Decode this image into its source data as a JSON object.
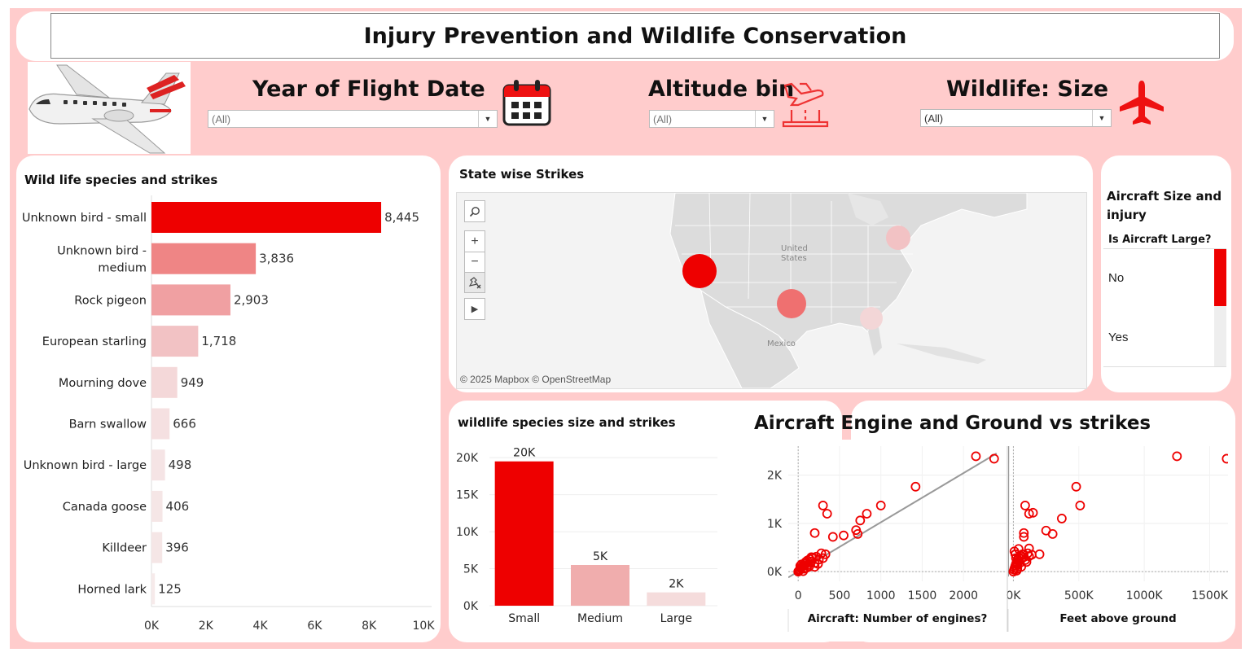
{
  "dashboard": {
    "title": "Injury Prevention and Wildlife Conservation",
    "image_icon": "airplane-illustration-icon"
  },
  "filters": [
    {
      "title": "Year of Flight Date",
      "value": "(All)",
      "icon": "calendar-icon"
    },
    {
      "title": "Altitude bin",
      "value": "(All)",
      "icon": "plane-landing-icon"
    },
    {
      "title": "Wildlife: Size",
      "value": "(All)",
      "icon": "airplane-icon"
    }
  ],
  "species": {
    "title": "Wild life species and strikes",
    "chart_data": {
      "type": "bar",
      "orientation": "horizontal",
      "categories": [
        "Unknown bird - small",
        "Unknown bird - medium",
        "Rock pigeon",
        "European starling",
        "Mourning dove",
        "Barn swallow",
        "Unknown bird - large",
        "Canada goose",
        "Killdeer",
        "Horned lark"
      ],
      "category_lines": [
        [
          "Unknown bird - small"
        ],
        [
          "Unknown bird -",
          "medium"
        ],
        [
          "Rock pigeon"
        ],
        [
          "European starling"
        ],
        [
          "Mourning dove"
        ],
        [
          "Barn swallow"
        ],
        [
          "Unknown bird - large"
        ],
        [
          "Canada goose"
        ],
        [
          "Killdeer"
        ],
        [
          "Horned lark"
        ]
      ],
      "values": [
        8445,
        3836,
        2903,
        1718,
        949,
        666,
        498,
        406,
        396,
        125
      ],
      "value_labels": [
        "8,445",
        "3,836",
        "2,903",
        "1,718",
        "949",
        "666",
        "498",
        "406",
        "396",
        "125"
      ],
      "xlim": [
        0,
        10000
      ],
      "xticks": [
        0,
        2000,
        4000,
        6000,
        8000,
        10000
      ],
      "xtick_labels": [
        "0K",
        "2K",
        "4K",
        "6K",
        "8K",
        "10K"
      ],
      "colors": [
        "#ee0000",
        "#ef8585",
        "#f0a0a2",
        "#f2c2c4",
        "#f4d8d9",
        "#f5e0e1",
        "#f5e4e5",
        "#f5e6e6",
        "#f5e6e6",
        "#f6eaea"
      ]
    }
  },
  "map": {
    "title": "State wise Strikes",
    "labels": {
      "us": "United\nStates",
      "mexico": "Mexico"
    },
    "attribution": "© 2025 Mapbox © OpenStreetMap",
    "tools": [
      "search-icon",
      "zoom-in-icon",
      "zoom-out-icon",
      "pin-clear-icon",
      "play-icon"
    ]
  },
  "aircraft_size": {
    "title": "Aircraft Size and injury",
    "subheader": "Is Aircraft Large?",
    "rows": [
      {
        "label": "No",
        "fill": 0.97
      },
      {
        "label": "Yes",
        "fill": 0.03
      }
    ]
  },
  "size_strikes": {
    "title": "wildlife species size and strikes",
    "chart_data": {
      "type": "bar",
      "categories": [
        "Small",
        "Medium",
        "Large"
      ],
      "values": [
        19500,
        5500,
        1800
      ],
      "value_labels": [
        "20K",
        "5K",
        "2K"
      ],
      "ylim": [
        0,
        22000
      ],
      "yticks": [
        0,
        5000,
        10000,
        15000,
        20000
      ],
      "ytick_labels": [
        "0K",
        "5K",
        "10K",
        "15K",
        "20K"
      ],
      "colors": [
        "#ee0000",
        "#f0adad",
        "#f5dcdc"
      ]
    }
  },
  "engine_ground": {
    "title": "Aircraft Engine and Ground vs strikes",
    "chart_data": [
      {
        "type": "scatter",
        "xlabel": "Aircraft: Number of engines?",
        "xlim": [
          -120,
          2520
        ],
        "xticks": [
          0,
          500,
          1000,
          1500,
          2000
        ],
        "xtick_labels": [
          "0",
          "500",
          "1000",
          "1500",
          "2000"
        ],
        "ylim": [
          -200,
          2600
        ],
        "yticks": [
          0,
          1000,
          2000
        ],
        "ytick_labels": [
          "0K",
          "1K",
          "2K"
        ],
        "trend": [
          [
            -120,
            -120
          ],
          [
            2400,
            2450
          ]
        ],
        "points": [
          [
            0,
            0
          ],
          [
            10,
            20
          ],
          [
            20,
            40
          ],
          [
            30,
            70
          ],
          [
            40,
            90
          ],
          [
            50,
            110
          ],
          [
            60,
            130
          ],
          [
            80,
            160
          ],
          [
            90,
            200
          ],
          [
            100,
            170
          ],
          [
            110,
            230
          ],
          [
            120,
            140
          ],
          [
            140,
            260
          ],
          [
            160,
            210
          ],
          [
            180,
            290
          ],
          [
            200,
            180
          ],
          [
            220,
            310
          ],
          [
            250,
            250
          ],
          [
            280,
            380
          ],
          [
            300,
            280
          ],
          [
            330,
            360
          ],
          [
            160,
            300
          ],
          [
            130,
            100
          ],
          [
            70,
            60
          ],
          [
            40,
            150
          ],
          [
            200,
            100
          ],
          [
            240,
            160
          ],
          [
            100,
            80
          ],
          [
            300,
            1370
          ],
          [
            350,
            1200
          ],
          [
            200,
            800
          ],
          [
            420,
            720
          ],
          [
            550,
            750
          ],
          [
            700,
            860
          ],
          [
            720,
            780
          ],
          [
            750,
            1060
          ],
          [
            830,
            1200
          ],
          [
            1000,
            1370
          ],
          [
            1420,
            1760
          ],
          [
            2150,
            2390
          ],
          [
            2370,
            2340
          ],
          [
            60,
            10
          ],
          [
            25,
            120
          ]
        ]
      },
      {
        "type": "scatter",
        "xlabel": "Feet above ground",
        "xlim": [
          -40000,
          1640000
        ],
        "xticks": [
          0,
          500000,
          1000000,
          1500000
        ],
        "xtick_labels": [
          "0K",
          "500K",
          "1000K",
          "1500K"
        ],
        "ylim": [
          -200,
          2600
        ],
        "yticks": [
          0,
          1000,
          2000
        ],
        "ytick_labels": [
          "0K",
          "1K",
          "2K"
        ],
        "trend": [
          [
            -40000,
            -100
          ],
          [
            1350000,
            2560000
          ]
        ],
        "points": [
          [
            0,
            0
          ],
          [
            5000,
            40
          ],
          [
            10000,
            80
          ],
          [
            15000,
            120
          ],
          [
            20000,
            160
          ],
          [
            25000,
            200
          ],
          [
            30000,
            140
          ],
          [
            35000,
            250
          ],
          [
            40000,
            300
          ],
          [
            45000,
            220
          ],
          [
            50000,
            180
          ],
          [
            55000,
            330
          ],
          [
            60000,
            260
          ],
          [
            70000,
            360
          ],
          [
            80000,
            300
          ],
          [
            90000,
            240
          ],
          [
            100000,
            200
          ],
          [
            110000,
            380
          ],
          [
            120000,
            320
          ],
          [
            140000,
            350
          ],
          [
            20000,
            280
          ],
          [
            8000,
            420
          ],
          [
            15000,
            360
          ],
          [
            30000,
            60
          ],
          [
            60000,
            100
          ],
          [
            40000,
            470
          ],
          [
            80000,
            800
          ],
          [
            80000,
            720
          ],
          [
            90000,
            1370
          ],
          [
            120000,
            1200
          ],
          [
            150000,
            1220
          ],
          [
            200000,
            360
          ],
          [
            250000,
            850
          ],
          [
            300000,
            780
          ],
          [
            370000,
            1100
          ],
          [
            480000,
            1760
          ],
          [
            510000,
            1370
          ],
          [
            1250000,
            2390
          ],
          [
            1630000,
            2340
          ],
          [
            120000,
            480
          ],
          [
            25000,
            20
          ]
        ]
      }
    ]
  }
}
